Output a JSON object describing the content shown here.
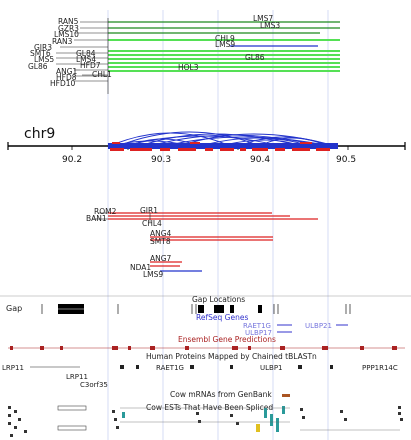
{
  "colors": {
    "green_dark": "#1f8a1f",
    "green_light": "#55e055",
    "blue": "#2233cc",
    "red": "#dd2222",
    "dark_red": "#aa2222",
    "gridline": "#b8c4ee",
    "refseq_blue": "#3333cc",
    "light_blue": "#7777dd",
    "text": "#222222",
    "black": "#000000"
  },
  "top_panel": {
    "labels": {
      "ran5": "RAN5",
      "gzr3": "GZR3",
      "lms10": "LMS10",
      "ran3": "RAN3",
      "gir3": "GIR3",
      "smt6": "SMT6",
      "lms5": "LMS5",
      "gl86_left": "GL86",
      "ang1": "ANG1",
      "hfd8": "HFD8",
      "hfd10": "HFD10",
      "gl84": "GL84",
      "lms4": "LMS4",
      "hfd7": "HFD7",
      "chl1": "CHL1",
      "lms7": "LMS7",
      "lms3": "LMS3",
      "chl9": "CHL9",
      "lms9": "LMS9",
      "gl86_right": "GL86",
      "hol3": "HOL3"
    }
  },
  "chromosome": {
    "name": "chr9",
    "ticks": [
      "90.2",
      "90.3",
      "90.4",
      "90.5"
    ]
  },
  "bottom_panel": {
    "labels": {
      "rom2": "ROM2",
      "gir1": "GIR1",
      "ban1": "BAN1",
      "chl4": "CHL4",
      "ang4": "ANG4",
      "smt8": "SMT8",
      "ang7": "ANG7",
      "nda1": "NDA1",
      "lms9": "LMS9"
    }
  },
  "browser": {
    "gap_label": "Gap",
    "gap_locations": "Gap Locations",
    "refseq_genes": "RefSeq Genes",
    "raet1g": "RAET1G",
    "ulbp17": "ULBP17",
    "ulbp21": "ULBP21",
    "ensembl": "Ensembl Gene Predictions",
    "human_proteins": "Human Proteins Mapped by Chained tBLASTn",
    "lrp11_a": "LRP11",
    "lrp11_b": "LRP11",
    "c3orf35": "C3orf35",
    "raet1g_b": "RAET1G",
    "ulbp1": "ULBP1",
    "ppp1r14c": "PPP1R14C",
    "cow_mrnas": "Cow mRNAs from GenBank",
    "cow_ests": "Cow ESTs That Have Been Spliced"
  }
}
